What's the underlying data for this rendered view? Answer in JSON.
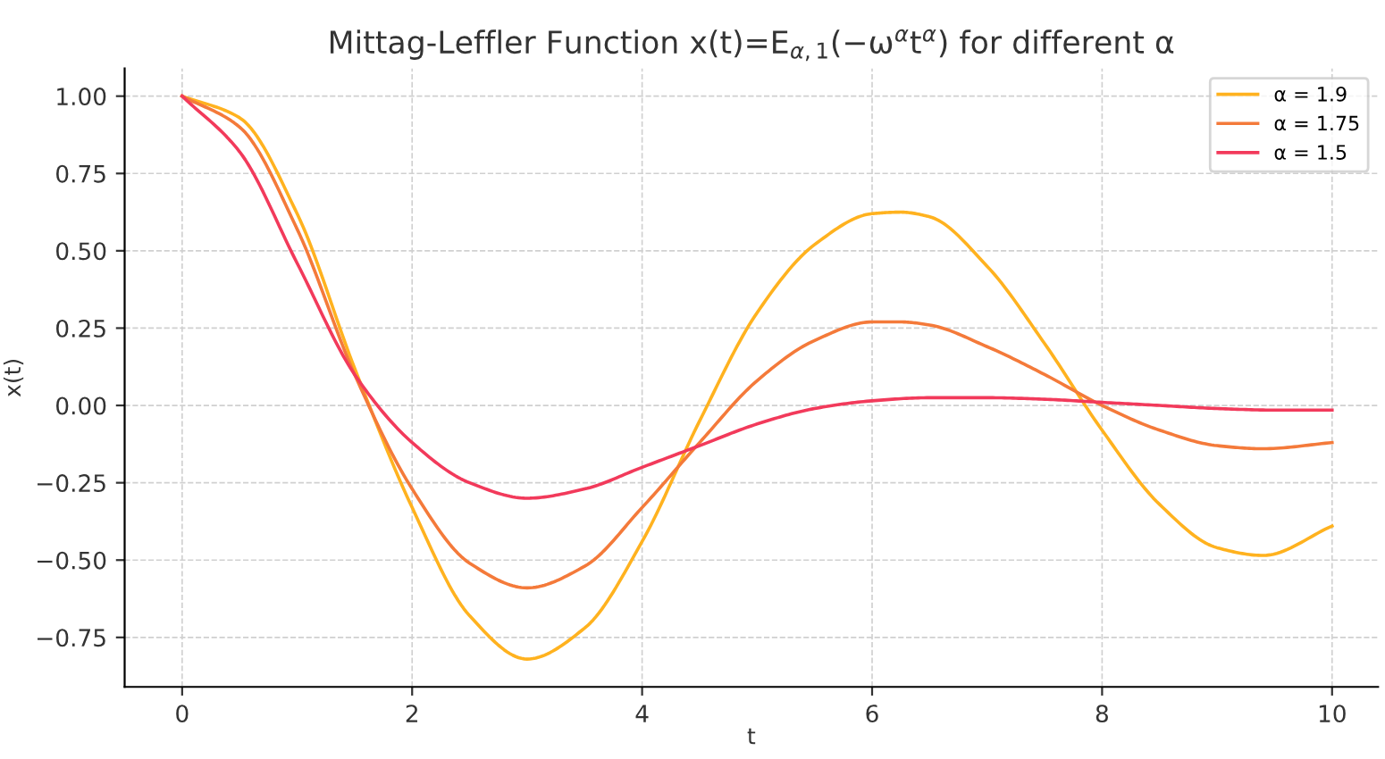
{
  "chart_data": {
    "type": "line",
    "title": "Mittag-Leffler Function x(t)=E$_{α,1}$(−ω$^{α}$t$^{α}$) for different α",
    "xlabel": "t",
    "ylabel": "x(t)",
    "xlim": [
      -0.5,
      10.4
    ],
    "ylim": [
      -0.91,
      1.09
    ],
    "xticks": [
      0,
      2,
      4,
      6,
      8,
      10
    ],
    "yticks": [
      {
        "value": -0.75,
        "label": "−0.75"
      },
      {
        "value": -0.5,
        "label": "−0.50"
      },
      {
        "value": -0.25,
        "label": "−0.25"
      },
      {
        "value": 0,
        "label": "0.00"
      },
      {
        "value": 0.25,
        "label": "0.25"
      },
      {
        "value": 0.5,
        "label": "0.50"
      },
      {
        "value": 0.75,
        "label": "0.75"
      },
      {
        "value": 1,
        "label": "1.00"
      }
    ],
    "grid": true,
    "legend": "top right",
    "line_style": "solid",
    "series": [
      {
        "name": "α = 1.9",
        "color": "#ffb21f",
        "x": [
          0,
          0.5,
          1,
          1.5,
          2,
          2.5,
          3,
          3.5,
          4,
          4.5,
          5,
          5.5,
          6,
          6.25,
          6.5,
          7,
          7.5,
          8,
          8.5,
          9,
          9.4,
          10
        ],
        "values": [
          1,
          0.93,
          0.62,
          0.12,
          -0.33,
          -0.68,
          -0.82,
          -0.72,
          -0.44,
          -0.05,
          0.3,
          0.52,
          0.62,
          0.625,
          0.61,
          0.45,
          0.2,
          -0.08,
          -0.32,
          -0.46,
          -0.485,
          -0.39
        ]
      },
      {
        "name": "α = 1.75",
        "color": "#f47a3a",
        "x": [
          0,
          0.5,
          1,
          1.5,
          2,
          2.5,
          3,
          3.5,
          4,
          4.5,
          5,
          5.5,
          6,
          6.25,
          6.5,
          7,
          7.5,
          8,
          8.5,
          9,
          9.4,
          10
        ],
        "values": [
          1,
          0.9,
          0.57,
          0.1,
          -0.27,
          -0.51,
          -0.59,
          -0.52,
          -0.33,
          -0.12,
          0.08,
          0.21,
          0.27,
          0.27,
          0.26,
          0.19,
          0.1,
          0,
          -0.08,
          -0.13,
          -0.14,
          -0.12
        ]
      },
      {
        "name": "α = 1.5",
        "color": "#f23a5b",
        "x": [
          0,
          0.5,
          1,
          1.5,
          2,
          2.5,
          3,
          3.5,
          4,
          4.5,
          5,
          5.5,
          6,
          6.5,
          7,
          7.5,
          8,
          8.5,
          9,
          9.5,
          10
        ],
        "values": [
          1,
          0.82,
          0.46,
          0.1,
          -0.12,
          -0.25,
          -0.3,
          -0.27,
          -0.2,
          -0.13,
          -0.06,
          -0.01,
          0.015,
          0.025,
          0.025,
          0.02,
          0.01,
          0,
          -0.01,
          -0.015,
          -0.015
        ]
      }
    ]
  }
}
